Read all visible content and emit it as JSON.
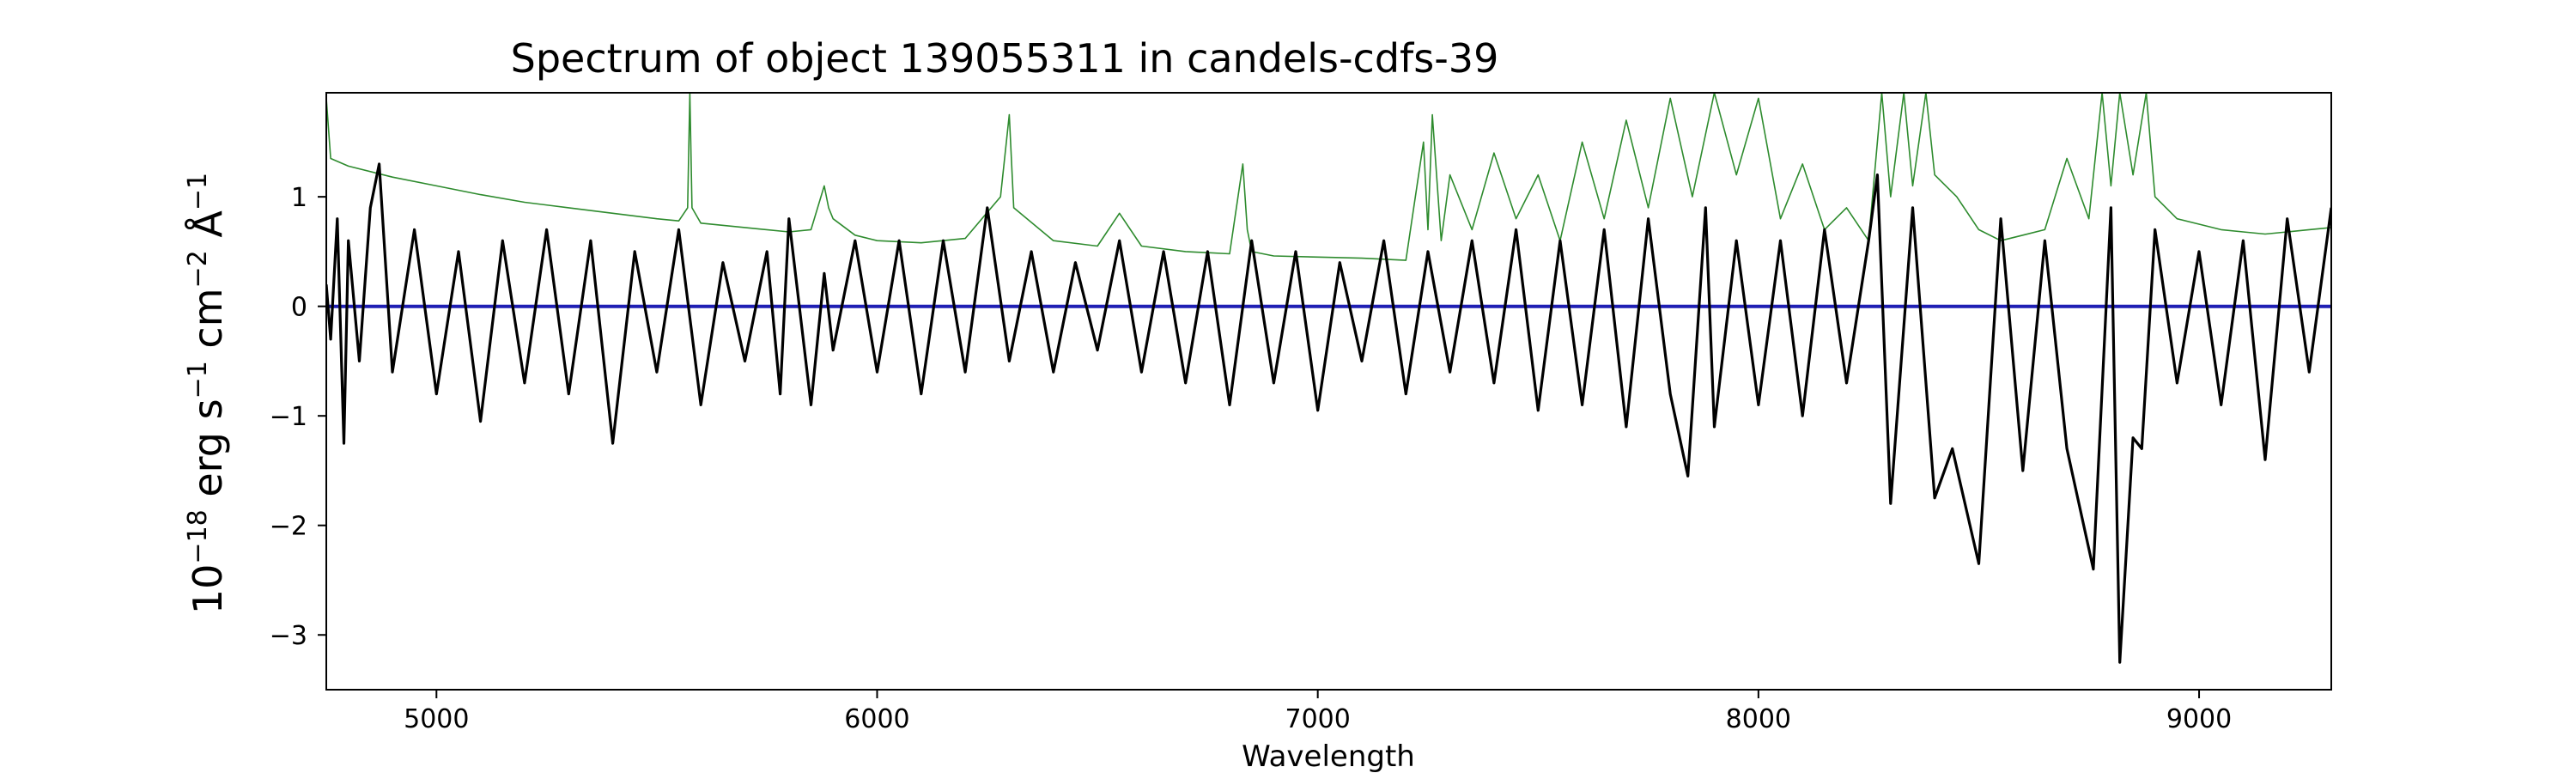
{
  "chart_data": {
    "type": "line",
    "title": "Spectrum of object 139055311 in candels-cdfs-39",
    "xlabel": "Wavelength",
    "ylabel": {
      "base": "10",
      "exp1": "−18",
      "erg": " erg s",
      "exp2": "−1",
      "cm": " cm",
      "exp3": "−2",
      "ang": " Å",
      "exp4": "−1"
    },
    "xlim": [
      4750,
      9300
    ],
    "ylim": [
      -3.5,
      1.95
    ],
    "xticks": [
      5000,
      6000,
      7000,
      8000,
      9000
    ],
    "xtick_labels": [
      "5000",
      "6000",
      "7000",
      "8000",
      "9000"
    ],
    "yticks": [
      -3,
      -2,
      -1,
      0,
      1
    ],
    "ytick_labels": [
      "−3",
      "−2",
      "−1",
      "0",
      "1"
    ],
    "grid": false,
    "colors": {
      "flux": "#000000",
      "noise": "#2e8b2e",
      "zero": "#1f1fb4"
    },
    "series": [
      {
        "role": "flux",
        "x": [
          4750,
          4760,
          4775,
          4790,
          4800,
          4825,
          4850,
          4870,
          4900,
          4950,
          5000,
          5050,
          5100,
          5150,
          5200,
          5250,
          5300,
          5350,
          5400,
          5450,
          5500,
          5550,
          5600,
          5650,
          5700,
          5750,
          5780,
          5800,
          5850,
          5880,
          5900,
          5950,
          6000,
          6050,
          6100,
          6150,
          6200,
          6250,
          6300,
          6350,
          6400,
          6450,
          6500,
          6550,
          6600,
          6650,
          6700,
          6750,
          6800,
          6850,
          6900,
          6950,
          7000,
          7050,
          7100,
          7150,
          7200,
          7250,
          7300,
          7350,
          7400,
          7450,
          7500,
          7550,
          7600,
          7650,
          7700,
          7750,
          7800,
          7840,
          7880,
          7900,
          7950,
          8000,
          8050,
          8100,
          8150,
          8200,
          8250,
          8270,
          8300,
          8350,
          8400,
          8440,
          8500,
          8550,
          8600,
          8650,
          8700,
          8760,
          8800,
          8820,
          8850,
          8870,
          8900,
          8950,
          9000,
          9050,
          9100,
          9150,
          9200,
          9250,
          9300
        ],
        "y": [
          0.2,
          -0.3,
          0.8,
          -1.25,
          0.6,
          -0.5,
          0.9,
          1.3,
          -0.6,
          0.7,
          -0.8,
          0.5,
          -1.05,
          0.6,
          -0.7,
          0.7,
          -0.8,
          0.6,
          -1.25,
          0.5,
          -0.6,
          0.7,
          -0.9,
          0.4,
          -0.5,
          0.5,
          -0.8,
          0.8,
          -0.9,
          0.3,
          -0.4,
          0.6,
          -0.6,
          0.6,
          -0.8,
          0.6,
          -0.6,
          0.9,
          -0.5,
          0.5,
          -0.6,
          0.4,
          -0.4,
          0.6,
          -0.6,
          0.5,
          -0.7,
          0.5,
          -0.9,
          0.6,
          -0.7,
          0.5,
          -0.95,
          0.4,
          -0.5,
          0.6,
          -0.8,
          0.5,
          -0.6,
          0.6,
          -0.7,
          0.7,
          -0.95,
          0.6,
          -0.9,
          0.7,
          -1.1,
          0.8,
          -0.8,
          -1.55,
          0.9,
          -1.1,
          0.6,
          -0.9,
          0.6,
          -1.0,
          0.7,
          -0.7,
          0.6,
          1.2,
          -1.8,
          0.9,
          -1.75,
          -1.3,
          -2.35,
          0.8,
          -1.5,
          0.6,
          -1.3,
          -2.4,
          0.9,
          -3.25,
          -1.2,
          -1.3,
          0.7,
          -0.7,
          0.5,
          -0.9,
          0.6,
          -1.4,
          0.8,
          -0.6,
          0.9
        ]
      },
      {
        "role": "noise",
        "x": [
          4750,
          4760,
          4800,
          4900,
          5000,
          5100,
          5200,
          5300,
          5400,
          5500,
          5550,
          5570,
          5575,
          5580,
          5600,
          5700,
          5800,
          5850,
          5880,
          5890,
          5900,
          5950,
          6000,
          6100,
          6200,
          6280,
          6300,
          6310,
          6400,
          6500,
          6550,
          6600,
          6700,
          6800,
          6830,
          6840,
          6850,
          6900,
          7000,
          7100,
          7200,
          7240,
          7250,
          7260,
          7280,
          7300,
          7350,
          7400,
          7450,
          7500,
          7550,
          7600,
          7650,
          7700,
          7750,
          7800,
          7850,
          7900,
          7950,
          8000,
          8050,
          8100,
          8150,
          8200,
          8250,
          8280,
          8300,
          8330,
          8350,
          8380,
          8400,
          8450,
          8500,
          8550,
          8600,
          8650,
          8700,
          8750,
          8780,
          8800,
          8820,
          8850,
          8880,
          8900,
          8950,
          9000,
          9050,
          9100,
          9150,
          9200,
          9250,
          9300
        ],
        "y": [
          1.9,
          1.35,
          1.28,
          1.18,
          1.1,
          1.02,
          0.95,
          0.9,
          0.85,
          0.8,
          0.78,
          0.9,
          1.95,
          0.9,
          0.76,
          0.72,
          0.68,
          0.7,
          1.1,
          0.9,
          0.8,
          0.65,
          0.6,
          0.58,
          0.62,
          1.0,
          1.75,
          0.9,
          0.6,
          0.55,
          0.85,
          0.55,
          0.5,
          0.48,
          1.3,
          0.7,
          0.5,
          0.46,
          0.45,
          0.44,
          0.42,
          1.5,
          0.7,
          1.75,
          0.6,
          1.2,
          0.7,
          1.4,
          0.8,
          1.2,
          0.6,
          1.5,
          0.8,
          1.7,
          0.9,
          1.9,
          1.0,
          1.95,
          1.2,
          1.9,
          0.8,
          1.3,
          0.7,
          0.9,
          0.6,
          1.95,
          1.0,
          1.95,
          1.1,
          1.95,
          1.2,
          1.0,
          0.7,
          0.6,
          0.65,
          0.7,
          1.35,
          0.8,
          1.95,
          1.1,
          1.95,
          1.2,
          1.95,
          1.0,
          0.8,
          0.75,
          0.7,
          0.68,
          0.66,
          0.68,
          0.7,
          0.72
        ]
      },
      {
        "role": "zero",
        "x": [
          4750,
          9300
        ],
        "y": [
          0,
          0
        ]
      }
    ]
  }
}
